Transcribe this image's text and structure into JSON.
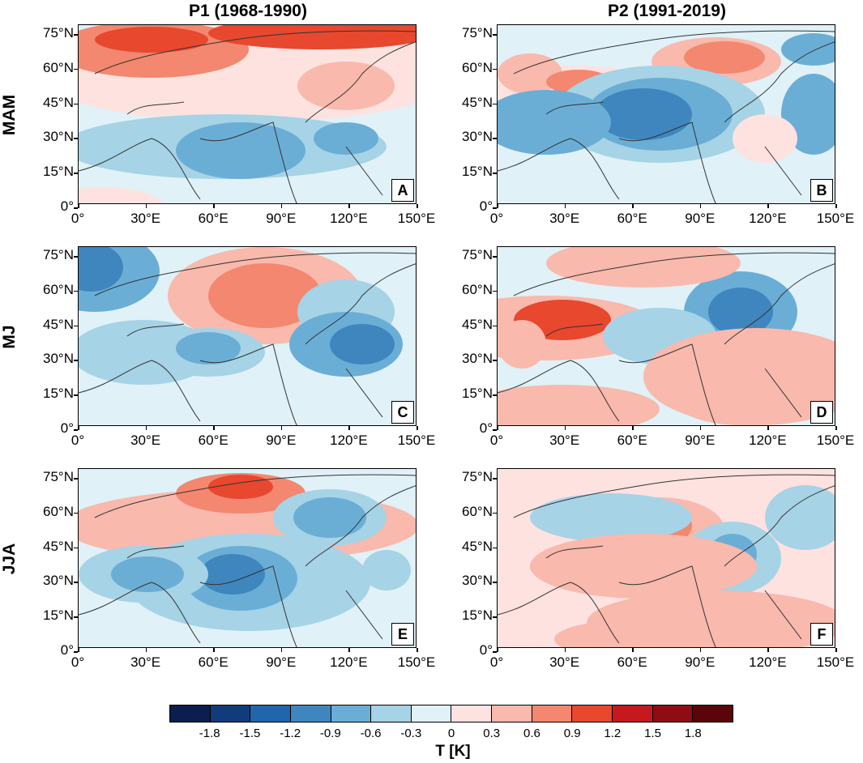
{
  "columns": [
    "P1 (1968-1990)",
    "P2 (1991-2019)"
  ],
  "rows": [
    "MAM",
    "MJ",
    "JJA"
  ],
  "panels": [
    {
      "label": "A",
      "row": "MAM",
      "period": "P1 (1968-1990)"
    },
    {
      "label": "B",
      "row": "MAM",
      "period": "P2 (1991-2019)"
    },
    {
      "label": "C",
      "row": "MJ",
      "period": "P1 (1968-1990)"
    },
    {
      "label": "D",
      "row": "MJ",
      "period": "P2 (1991-2019)"
    },
    {
      "label": "E",
      "row": "JJA",
      "period": "P1 (1968-1990)"
    },
    {
      "label": "F",
      "row": "JJA",
      "period": "P2 (1991-2019)"
    }
  ],
  "y_ticks": [
    "75°N",
    "60°N",
    "45°N",
    "30°N",
    "15°N",
    "0°"
  ],
  "x_ticks": [
    "0°",
    "30°E",
    "60°E",
    "90°E",
    "120°E",
    "150°E"
  ],
  "colorbar": {
    "label": "T [K]",
    "ticks": [
      "-1.8",
      "-1.5",
      "-1.2",
      "-0.9",
      "-0.6",
      "-0.3",
      "0",
      "0.3",
      "0.6",
      "0.9",
      "1.2",
      "1.5",
      "1.8"
    ],
    "colors": [
      "#0a1f4d",
      "#123b7a",
      "#2166ac",
      "#3f86bf",
      "#6aaed6",
      "#a6d3e6",
      "#e0f1f8",
      "#fde2e0",
      "#f9b9ad",
      "#f3876f",
      "#e7482e",
      "#c6191f",
      "#8f0d12",
      "#5a0507"
    ]
  }
}
